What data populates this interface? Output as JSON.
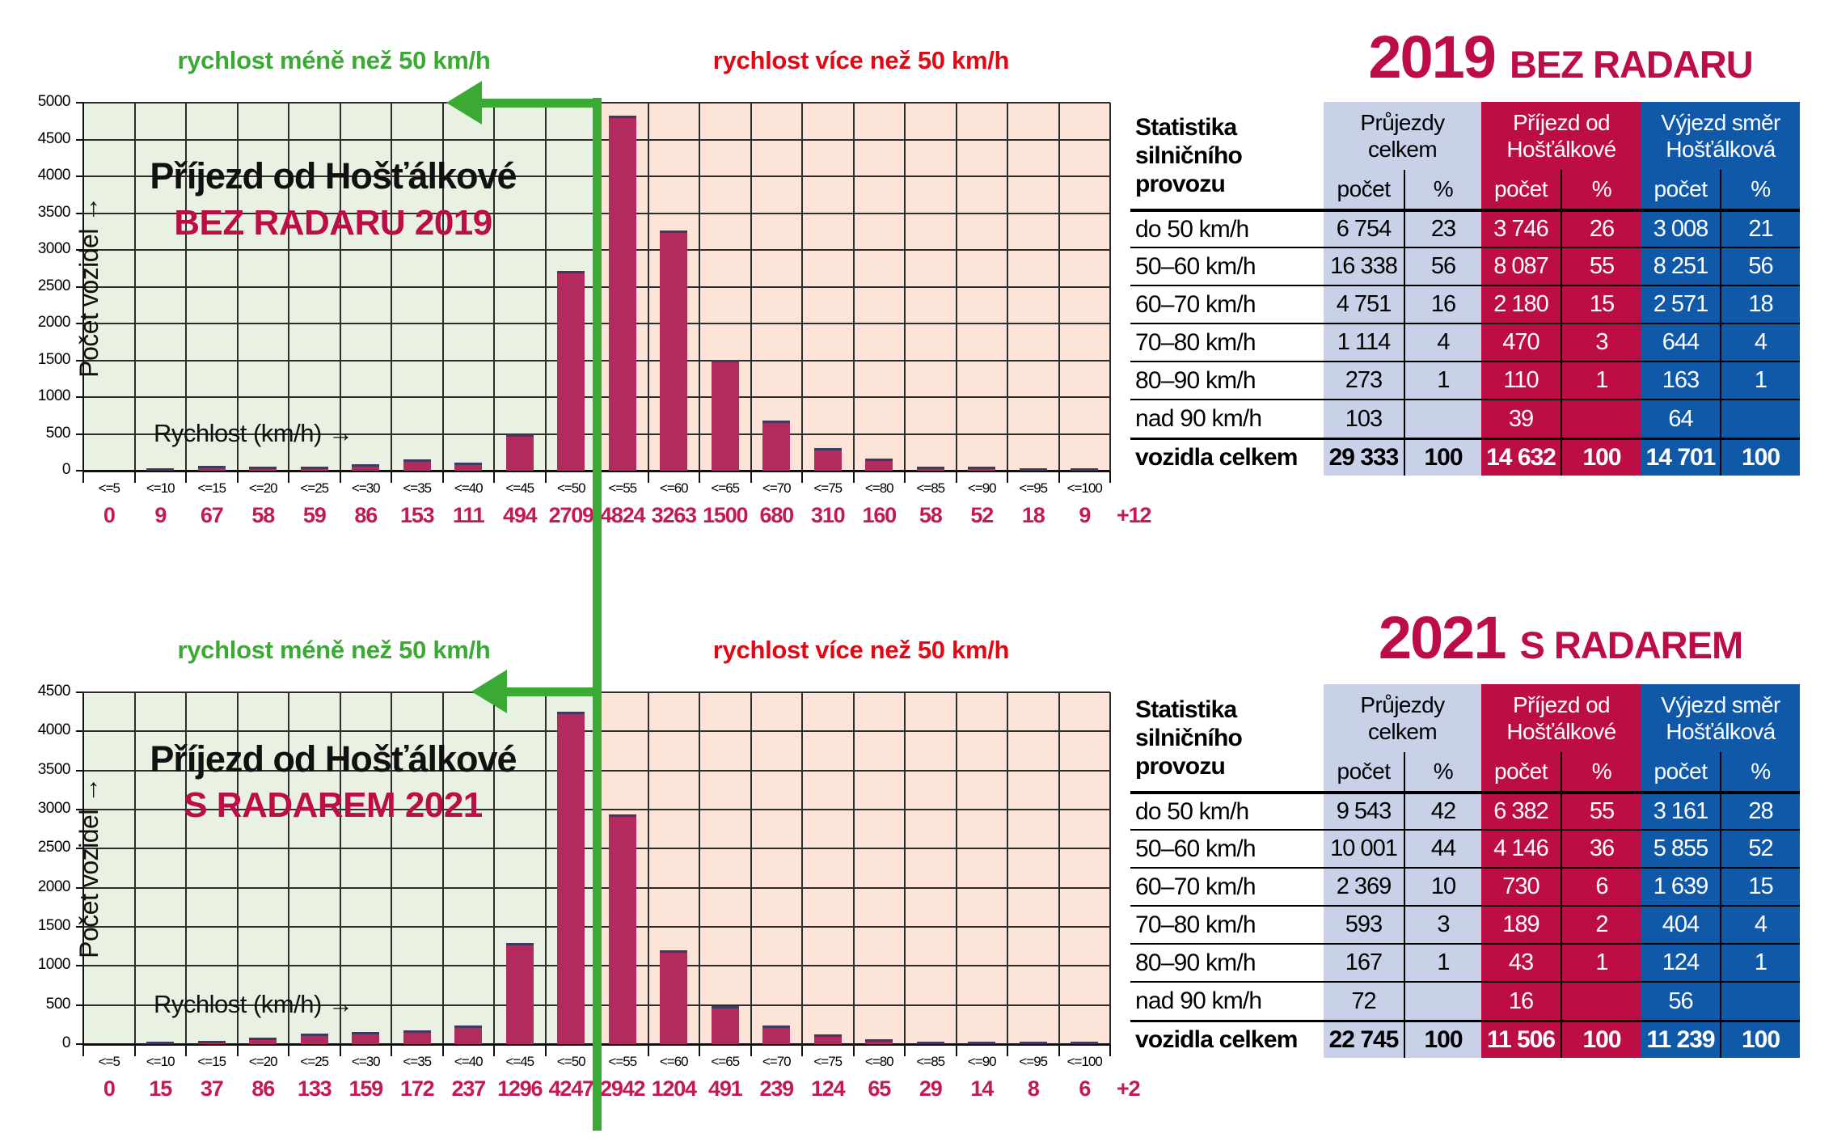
{
  "colors": {
    "green": "#3aaa35",
    "red": "#e30613",
    "crimson": "#bd0d46",
    "value_text": "#c41a52",
    "bar": "#b32a5e",
    "bar_top": "#3f3a5e",
    "chart_green_bg": "#e9f1e3",
    "chart_pink_bg": "#fce4d8",
    "table_lavender": "#c9d1e8",
    "table_crimson": "#bc0d45",
    "table_blue": "#1059a9"
  },
  "chart_data": [
    {
      "type": "bar",
      "title": "Příjezd od Hošťálkové",
      "subtitle": "BEZ RADARU 2019",
      "zone_left_label": "rychlost méně než 50 km/h",
      "zone_right_label": "rychlost více než 50 km/h",
      "xlabel": "Rychlost (km/h) →",
      "ylabel": "Počet vozidel →",
      "ylim": [
        0,
        5000
      ],
      "ystep": 500,
      "grid": true,
      "split_after_category": "<=50",
      "categories": [
        "<=5",
        "<=10",
        "<=15",
        "<=20",
        "<=25",
        "<=30",
        "<=35",
        "<=40",
        "<=45",
        "<=50",
        "<=55",
        "<=60",
        "<=65",
        "<=70",
        "<=75",
        "<=80",
        "<=85",
        "<=90",
        "<=95",
        "<=100"
      ],
      "values": [
        0,
        9,
        67,
        58,
        59,
        86,
        153,
        111,
        494,
        2709,
        4824,
        3263,
        1500,
        680,
        310,
        160,
        58,
        52,
        18,
        9
      ],
      "overflow_label": "+12"
    },
    {
      "type": "bar",
      "title": "Příjezd od Hošťálkové",
      "subtitle": "S RADAREM 2021",
      "zone_left_label": "rychlost méně než 50 km/h",
      "zone_right_label": "rychlost více než 50 km/h",
      "xlabel": "Rychlost (km/h) →",
      "ylabel": "Počet vozidel →",
      "ylim": [
        0,
        4500
      ],
      "ystep": 500,
      "grid": true,
      "split_after_category": "<=50",
      "categories": [
        "<=5",
        "<=10",
        "<=15",
        "<=20",
        "<=25",
        "<=30",
        "<=35",
        "<=40",
        "<=45",
        "<=50",
        "<=55",
        "<=60",
        "<=65",
        "<=70",
        "<=75",
        "<=80",
        "<=85",
        "<=90",
        "<=95",
        "<=100"
      ],
      "values": [
        0,
        15,
        37,
        86,
        133,
        159,
        172,
        237,
        1296,
        4247,
        2942,
        1204,
        491,
        239,
        124,
        65,
        29,
        14,
        8,
        6
      ],
      "overflow_label": "+2"
    }
  ],
  "tables": [
    {
      "title": {
        "year": "2019",
        "label": "BEZ RADARU"
      },
      "corner_header": [
        "Statistika",
        "silničního",
        "provozu"
      ],
      "column_groups": [
        {
          "label": "Průjezdy celkem",
          "style": "lav",
          "columns": [
            "počet",
            "%"
          ]
        },
        {
          "label": "Příjezd od Hošťálkové",
          "style": "crim",
          "columns": [
            "počet",
            "%"
          ]
        },
        {
          "label": "Výjezd směr Hošťálková",
          "style": "blue",
          "columns": [
            "počet",
            "%"
          ]
        }
      ],
      "rows": [
        {
          "label": "do 50 km/h",
          "values": [
            "6 754",
            "23",
            "3 746",
            "26",
            "3 008",
            "21"
          ],
          "total": false
        },
        {
          "label": "50–60 km/h",
          "values": [
            "16 338",
            "56",
            "8 087",
            "55",
            "8 251",
            "56"
          ],
          "total": false
        },
        {
          "label": "60–70 km/h",
          "values": [
            "4 751",
            "16",
            "2 180",
            "15",
            "2 571",
            "18"
          ],
          "total": false
        },
        {
          "label": "70–80 km/h",
          "values": [
            "1 114",
            "4",
            "470",
            "3",
            "644",
            "4"
          ],
          "total": false
        },
        {
          "label": "80–90 km/h",
          "values": [
            "273",
            "1",
            "110",
            "1",
            "163",
            "1"
          ],
          "total": false
        },
        {
          "label": "nad 90 km/h",
          "values": [
            "103",
            "",
            "39",
            "",
            "64",
            ""
          ],
          "total": false
        },
        {
          "label": "vozidla celkem",
          "values": [
            "29 333",
            "100",
            "14 632",
            "100",
            "14 701",
            "100"
          ],
          "total": true
        }
      ]
    },
    {
      "title": {
        "year": "2021",
        "label": "S RADAREM"
      },
      "corner_header": [
        "Statistika",
        "silničního",
        "provozu"
      ],
      "column_groups": [
        {
          "label": "Průjezdy celkem",
          "style": "lav",
          "columns": [
            "počet",
            "%"
          ]
        },
        {
          "label": "Příjezd od Hošťálkové",
          "style": "crim",
          "columns": [
            "počet",
            "%"
          ]
        },
        {
          "label": "Výjezd směr Hošťálková",
          "style": "blue",
          "columns": [
            "počet",
            "%"
          ]
        }
      ],
      "rows": [
        {
          "label": "do 50 km/h",
          "values": [
            "9 543",
            "42",
            "6 382",
            "55",
            "3 161",
            "28"
          ],
          "total": false
        },
        {
          "label": "50–60 km/h",
          "values": [
            "10 001",
            "44",
            "4 146",
            "36",
            "5 855",
            "52"
          ],
          "total": false
        },
        {
          "label": "60–70 km/h",
          "values": [
            "2 369",
            "10",
            "730",
            "6",
            "1 639",
            "15"
          ],
          "total": false
        },
        {
          "label": "70–80 km/h",
          "values": [
            "593",
            "3",
            "189",
            "2",
            "404",
            "4"
          ],
          "total": false
        },
        {
          "label": "80–90 km/h",
          "values": [
            "167",
            "1",
            "43",
            "1",
            "124",
            "1"
          ],
          "total": false
        },
        {
          "label": "nad 90 km/h",
          "values": [
            "72",
            "",
            "16",
            "",
            "56",
            ""
          ],
          "total": false
        },
        {
          "label": "vozidla celkem",
          "values": [
            "22 745",
            "100",
            "11 506",
            "100",
            "11 239",
            "100"
          ],
          "total": true
        }
      ]
    }
  ]
}
